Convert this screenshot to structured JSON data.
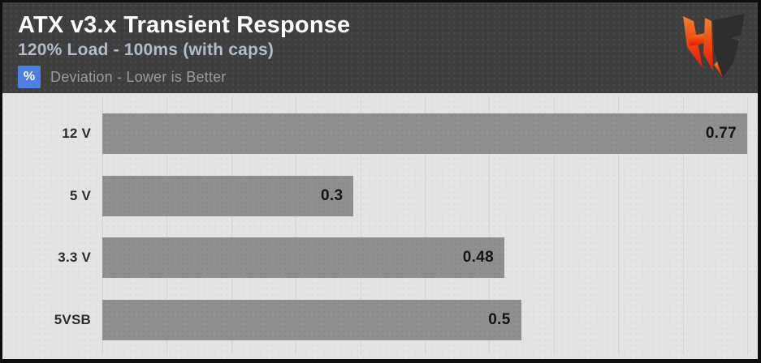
{
  "header": {
    "title": "ATX v3.x Transient Response",
    "subtitle": "120% Load - 100ms (with caps)",
    "unit_badge": "%",
    "unit_label": "Deviation - Lower is Better",
    "badge_color": "#4a80e2",
    "background_color": "#3e3e3e"
  },
  "logo": {
    "icon": "hardware-busters-hb-logo",
    "colors": {
      "h_gradient_top": "#f0832f",
      "h_gradient_bottom": "#ee1605",
      "b_fill": "#2e2e2e"
    }
  },
  "chart_data": {
    "type": "bar",
    "orientation": "horizontal",
    "title": "ATX v3.x Transient Response",
    "subtitle": "120% Load - 100ms (with caps)",
    "unit": "%",
    "note": "Deviation - Lower is Better",
    "categories": [
      "12 V",
      "5 V",
      "3.3 V",
      "5VSB"
    ],
    "values": [
      0.77,
      0.3,
      0.48,
      0.5
    ],
    "value_labels": [
      "0.77",
      "0.3",
      "0.48",
      "0.5"
    ],
    "xlim": [
      0,
      0.77
    ],
    "gridline_divisions": 10,
    "grid": true,
    "legend": "none",
    "bar_color": "#8f8f8f",
    "plot_background": "#e4e4e4",
    "gridline_color": "#d4d4d4"
  }
}
